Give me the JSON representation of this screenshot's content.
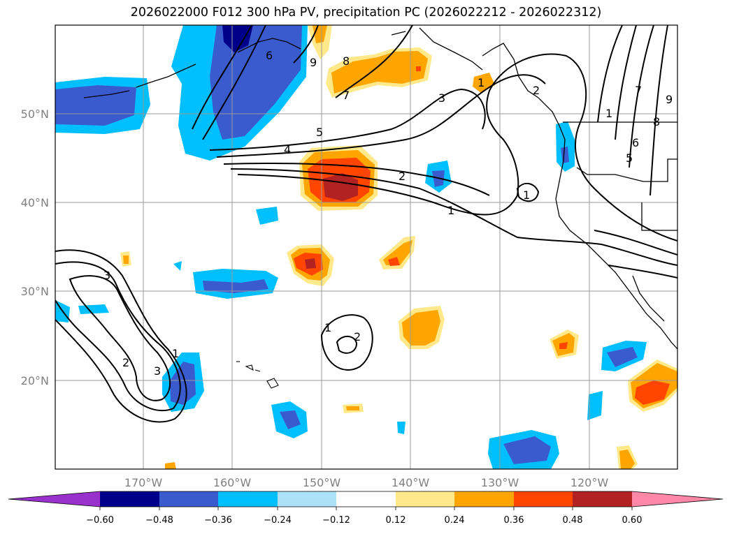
{
  "title": "2026022000 F012 300 hPa PV, precipitation PC (2026022212 - 2026022312)",
  "map": {
    "lat_labels": [
      "50°N",
      "40°N",
      "30°N",
      "20°N"
    ],
    "lon_labels": [
      "170°W",
      "160°W",
      "150°W",
      "140°W",
      "130°W",
      "120°W"
    ],
    "contour_labels": [
      "9",
      "8",
      "7",
      "6",
      "5",
      "4",
      "2",
      "1",
      "3",
      "2",
      "1",
      "3",
      "2",
      "1",
      "1",
      "2",
      "1",
      "1",
      "3",
      "5",
      "7",
      "9",
      "6",
      "8"
    ]
  },
  "colorbar": {
    "ticks": [
      "−0.60",
      "−0.48",
      "−0.36",
      "−0.24",
      "−0.12",
      "0.12",
      "0.24",
      "0.36",
      "0.48",
      "0.60"
    ],
    "colors": [
      "#9932CC",
      "#00008B",
      "#3A5BCD",
      "#00BFFF",
      "#ADE1F8",
      "#FFFFFF",
      "#FFE98A",
      "#FFA500",
      "#FF4500",
      "#B22222",
      "#FF87A8"
    ]
  }
}
